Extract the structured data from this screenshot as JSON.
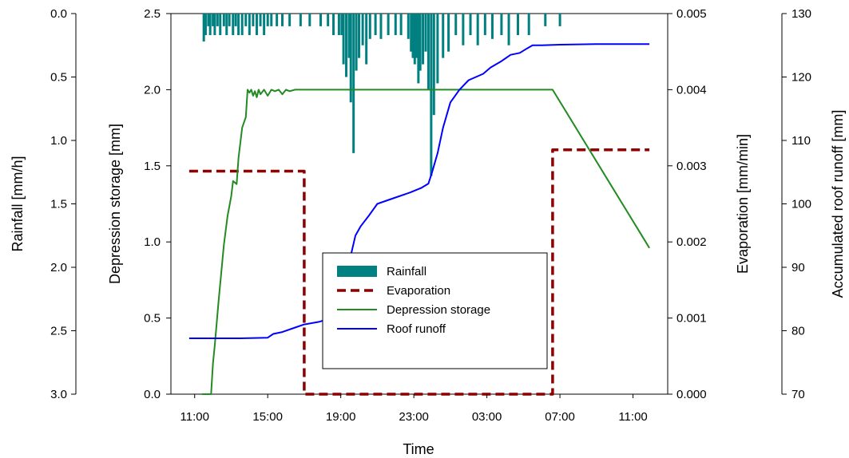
{
  "chart_data": {
    "type": "line",
    "xlabel": "Time",
    "x_ticks": [
      "11:00",
      "15:00",
      "19:00",
      "23:00",
      "03:00",
      "07:00",
      "11:00"
    ],
    "x_tick_hours": [
      0,
      4,
      8,
      12,
      16,
      20,
      24
    ],
    "x_range_hours": [
      -1.3,
      25.9
    ],
    "x_note": "hours elapsed since 11:00 on the first day",
    "axes": {
      "depression_storage": {
        "label": "Depression storage [mm]",
        "range": [
          0,
          2.5
        ],
        "ticks": [
          "0.0",
          "0.5",
          "1.0",
          "1.5",
          "2.0",
          "2.5"
        ],
        "side": "left"
      },
      "rainfall": {
        "label": "Rainfall [mm/h]",
        "range": [
          0,
          3
        ],
        "inverted": true,
        "ticks": [
          "0.0",
          "0.5",
          "1.0",
          "1.5",
          "2.0",
          "2.5",
          "3.0"
        ],
        "side": "left"
      },
      "evaporation": {
        "label": "Evaporation [mm/min]",
        "range": [
          0,
          0.005
        ],
        "ticks": [
          "0.000",
          "0.001",
          "0.002",
          "0.003",
          "0.004",
          "0.005"
        ],
        "side": "right"
      },
      "runoff": {
        "label": "Accumulated roof runoff [mm]",
        "range": [
          70,
          130
        ],
        "ticks": [
          "70",
          "80",
          "90",
          "100",
          "110",
          "120",
          "130"
        ],
        "side": "right"
      }
    },
    "legend": {
      "position": "center",
      "entries": [
        "Rainfall",
        "Evaporation",
        "Depression storage",
        "Roof runoff"
      ]
    },
    "series": [
      {
        "name": "Rainfall",
        "axis": "rainfall",
        "style": "bars",
        "color": "#008080",
        "x": [
          0.5,
          0.6,
          0.75,
          0.85,
          1.0,
          1.1,
          1.25,
          1.4,
          1.6,
          1.75,
          1.9,
          2.1,
          2.25,
          2.4,
          2.6,
          2.8,
          3.0,
          3.2,
          3.4,
          3.6,
          3.8,
          4.0,
          4.2,
          4.5,
          4.8,
          5.2,
          5.8,
          6.3,
          6.9,
          7.3,
          7.6,
          7.9,
          8.05,
          8.15,
          8.3,
          8.45,
          8.55,
          8.7,
          8.85,
          9.0,
          9.2,
          9.4,
          9.6,
          9.9,
          10.2,
          10.6,
          11.0,
          11.3,
          11.7,
          11.85,
          11.95,
          12.05,
          12.15,
          12.25,
          12.35,
          12.5,
          12.65,
          12.8,
          12.95,
          13.1,
          13.3,
          13.6,
          13.9,
          14.3,
          14.7,
          15.1,
          15.5,
          15.9,
          16.3,
          16.8,
          17.2,
          17.7,
          18.3,
          19.2,
          20.0
        ],
        "values": [
          0.22,
          0.17,
          0.1,
          0.17,
          0.1,
          0.17,
          0.1,
          0.17,
          0.1,
          0.17,
          0.1,
          0.17,
          0.1,
          0.17,
          0.17,
          0.1,
          0.17,
          0.1,
          0.17,
          0.1,
          0.17,
          0.1,
          0.1,
          0.1,
          0.1,
          0.1,
          0.1,
          0.1,
          0.1,
          0.1,
          0.17,
          0.17,
          0.17,
          0.4,
          0.5,
          0.35,
          0.7,
          1.1,
          0.45,
          0.35,
          0.25,
          0.4,
          0.2,
          0.17,
          0.2,
          0.17,
          0.17,
          0.17,
          0.2,
          0.3,
          0.35,
          0.4,
          0.35,
          0.55,
          0.45,
          0.4,
          0.3,
          0.6,
          1.28,
          0.8,
          0.55,
          0.35,
          0.3,
          0.17,
          0.25,
          0.17,
          0.25,
          0.17,
          0.2,
          0.17,
          0.25,
          0.17,
          0.17,
          0.1,
          0.1
        ]
      },
      {
        "name": "Evaporation",
        "axis": "evaporation",
        "style": "dashed-step",
        "color": "#8b0000",
        "x": [
          -0.3,
          6.0,
          6.0,
          19.6,
          19.6,
          24.9
        ],
        "values": [
          0.00293,
          0.00293,
          0.0,
          0.0,
          0.00321,
          0.00321
        ]
      },
      {
        "name": "Depression storage",
        "axis": "depression_storage",
        "style": "line",
        "color": "#228b22",
        "x": [
          0.4,
          0.9,
          1.0,
          1.1,
          1.3,
          1.6,
          1.8,
          2.0,
          2.1,
          2.3,
          2.4,
          2.6,
          2.8,
          2.9,
          3.0,
          3.1,
          3.2,
          3.3,
          3.4,
          3.5,
          3.6,
          3.8,
          4.0,
          4.2,
          4.4,
          4.6,
          4.8,
          5.0,
          5.2,
          5.5,
          6.0,
          6.2,
          19.6,
          24.9
        ],
        "values": [
          0.0,
          0.0,
          0.2,
          0.32,
          0.6,
          0.98,
          1.17,
          1.3,
          1.4,
          1.38,
          1.55,
          1.75,
          1.82,
          2.0,
          1.98,
          2.0,
          1.96,
          1.99,
          1.95,
          2.0,
          1.97,
          2.0,
          1.96,
          2.0,
          1.99,
          2.0,
          1.97,
          2.0,
          1.99,
          2.0,
          2.0,
          2.0,
          2.0,
          0.96
        ]
      },
      {
        "name": "Roof runoff",
        "axis": "runoff",
        "style": "line",
        "color": "#0000ff",
        "x": [
          -0.3,
          1.0,
          2.5,
          4.0,
          4.3,
          4.8,
          5.5,
          6.0,
          6.8,
          7.5,
          7.8,
          8.0,
          8.3,
          8.6,
          8.8,
          9.1,
          9.5,
          10.0,
          10.5,
          11.0,
          11.8,
          12.4,
          12.8,
          13.0,
          13.3,
          13.6,
          14.0,
          14.5,
          15.0,
          15.8,
          16.2,
          16.8,
          17.3,
          17.8,
          18.2,
          18.5,
          19.0,
          20.0,
          22.0,
          24.9
        ],
        "values": [
          78.8,
          78.8,
          78.8,
          78.9,
          79.5,
          79.8,
          80.5,
          81.0,
          81.4,
          82.0,
          83.0,
          85.0,
          89.0,
          92.5,
          95.0,
          96.5,
          98.0,
          100.0,
          100.5,
          101.0,
          101.8,
          102.5,
          103.2,
          105.0,
          108.0,
          112.0,
          116.0,
          118.0,
          119.5,
          120.5,
          121.5,
          122.5,
          123.5,
          123.8,
          124.5,
          125.0,
          125.0,
          125.1,
          125.2,
          125.2
        ]
      }
    ]
  }
}
